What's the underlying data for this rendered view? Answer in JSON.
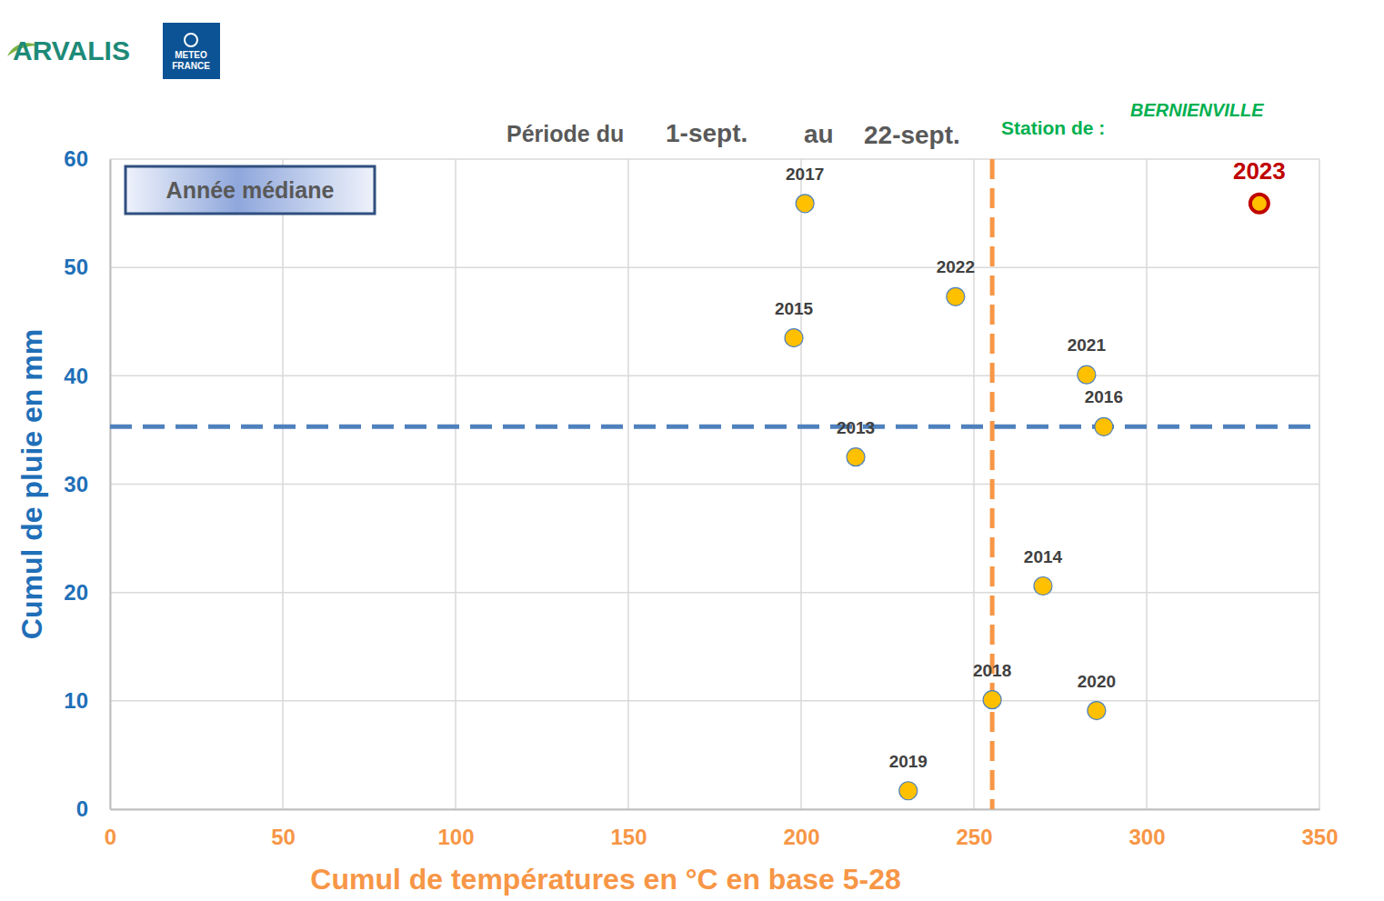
{
  "chart_data": {
    "type": "scatter",
    "logos": [
      "ARVALIS",
      "METEO",
      "FRANCE"
    ],
    "period_label": "Période du",
    "period_start": "1-sept.",
    "period_separator": "au",
    "period_end": "22-sept.",
    "station_label": "Station de :",
    "station": "BERNIENVILLE",
    "annotation": "Année médiane",
    "x_label": "Cumul de températures en °C en base 5-28",
    "y_label": "Cumul de pluie en mm",
    "labels": [
      "2013",
      "2014",
      "2015",
      "2016",
      "2017",
      "2018",
      "2019",
      "2020",
      "2021",
      "2022",
      "2023"
    ],
    "x": [
      215.8,
      270,
      197.9,
      287.6,
      201.1,
      255.3,
      231,
      285.5,
      282.6,
      244.7,
      332.6
    ],
    "values": [
      32.5,
      20.6,
      43.5,
      35.3,
      55.9,
      10.1,
      1.7,
      9.1,
      40.1,
      47.3,
      55.9
    ],
    "colors": [
      "#4f81bd",
      "#4f81bd",
      "#4f81bd",
      "#4f81bd",
      "#4f81bd",
      "#4f81bd",
      "#4f81bd",
      "#4f81bd",
      "#4f81bd",
      "#4f81bd",
      "#c00000"
    ],
    "median_x": 255.3,
    "median_y": 35.3,
    "xlim": [
      0,
      350
    ],
    "xticks": [
      0,
      50,
      100,
      150,
      200,
      250,
      300,
      350
    ],
    "ylim": [
      0,
      60
    ],
    "yticks": [
      0,
      10,
      20,
      30,
      40,
      50,
      60
    ],
    "grid": true,
    "marker": "circle"
  }
}
